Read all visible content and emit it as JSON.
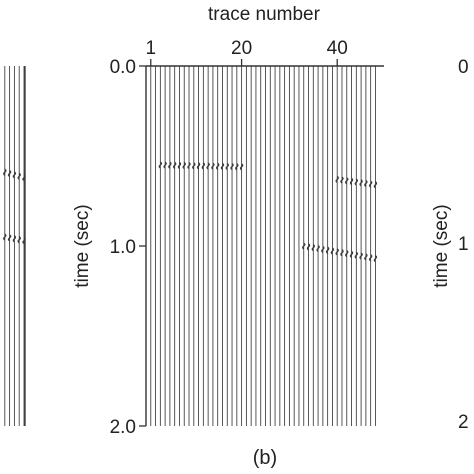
{
  "chart_data": [
    {
      "panel_id": "(b)",
      "type": "line",
      "subtype": "seismic-wiggle-traces",
      "xlabel": "trace number",
      "ylabel": "time (sec)",
      "x_ticks": [
        "1",
        "20",
        "40"
      ],
      "x_tick_values": [
        1,
        20,
        40
      ],
      "y_ticks": [
        "0.0",
        "1.0",
        "2.0"
      ],
      "y_tick_values": [
        0.0,
        1.0,
        2.0
      ],
      "xlim": [
        0,
        49
      ],
      "ylim": [
        0.0,
        2.0
      ],
      "y_axis_reversed": true,
      "trace_count": 48,
      "events": [
        {
          "first_trace": 3,
          "last_trace": 20,
          "t_start": 0.55,
          "t_end": 0.56
        },
        {
          "first_trace": 33,
          "last_trace": 48,
          "t_start": 1.0,
          "t_end": 1.07
        },
        {
          "first_trace": 40,
          "last_trace": 48,
          "t_start": 0.63,
          "t_end": 0.66
        }
      ],
      "line_color": "#3a3a3a"
    }
  ],
  "left_panel": {
    "trace_count": 5,
    "events": [
      {
        "first_trace": 1,
        "last_trace": 5,
        "t_start": 0.59,
        "t_end": 0.62
      },
      {
        "first_trace": 1,
        "last_trace": 5,
        "t_start": 0.95,
        "t_end": 0.97
      }
    ]
  },
  "right_panel": {
    "y_ticks": [
      "0",
      "1",
      "2"
    ],
    "ylabel": "time (sec)"
  }
}
